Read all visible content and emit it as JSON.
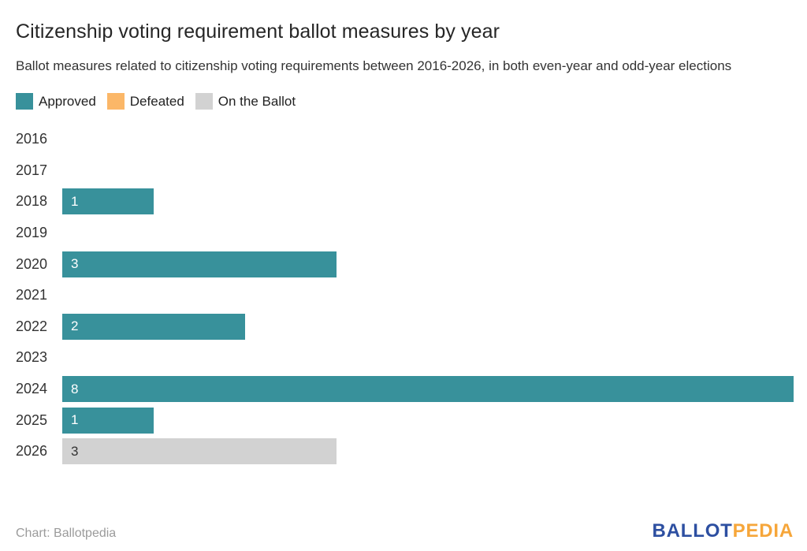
{
  "header": {
    "title": "Citizenship voting requirement ballot measures by year",
    "subtitle": "Ballot measures related to citizenship voting requirements between 2016-2026, in both even-year and odd-year elections"
  },
  "legend": [
    {
      "label": "Approved",
      "color": "#38919b"
    },
    {
      "label": "Defeated",
      "color": "#fbb768"
    },
    {
      "label": "On the Ballot",
      "color": "#d2d2d2"
    }
  ],
  "chart_data": {
    "type": "bar",
    "orientation": "horizontal",
    "title": "Citizenship voting requirement ballot measures by year",
    "categories": [
      "2016",
      "2017",
      "2018",
      "2019",
      "2020",
      "2021",
      "2022",
      "2023",
      "2024",
      "2025",
      "2026"
    ],
    "series": [
      {
        "name": "Approved",
        "color": "#38919b",
        "label_color": "#ffffff",
        "values": [
          0,
          0,
          1,
          0,
          3,
          0,
          2,
          0,
          8,
          1,
          0
        ]
      },
      {
        "name": "Defeated",
        "color": "#fbb768",
        "label_color": "#333333",
        "values": [
          0,
          0,
          0,
          0,
          0,
          0,
          0,
          0,
          0,
          0,
          0
        ]
      },
      {
        "name": "On the Ballot",
        "color": "#d2d2d2",
        "label_color": "#333333",
        "values": [
          0,
          0,
          0,
          0,
          0,
          0,
          0,
          0,
          0,
          0,
          3
        ]
      }
    ],
    "xlim": [
      0,
      8
    ],
    "bar_value_labels_shown": true,
    "grid": false,
    "legend_position": "top"
  },
  "footer": {
    "credit": "Chart: Ballotpedia",
    "logo_part1": "BALLOT",
    "logo_part2": "PEDIA"
  }
}
